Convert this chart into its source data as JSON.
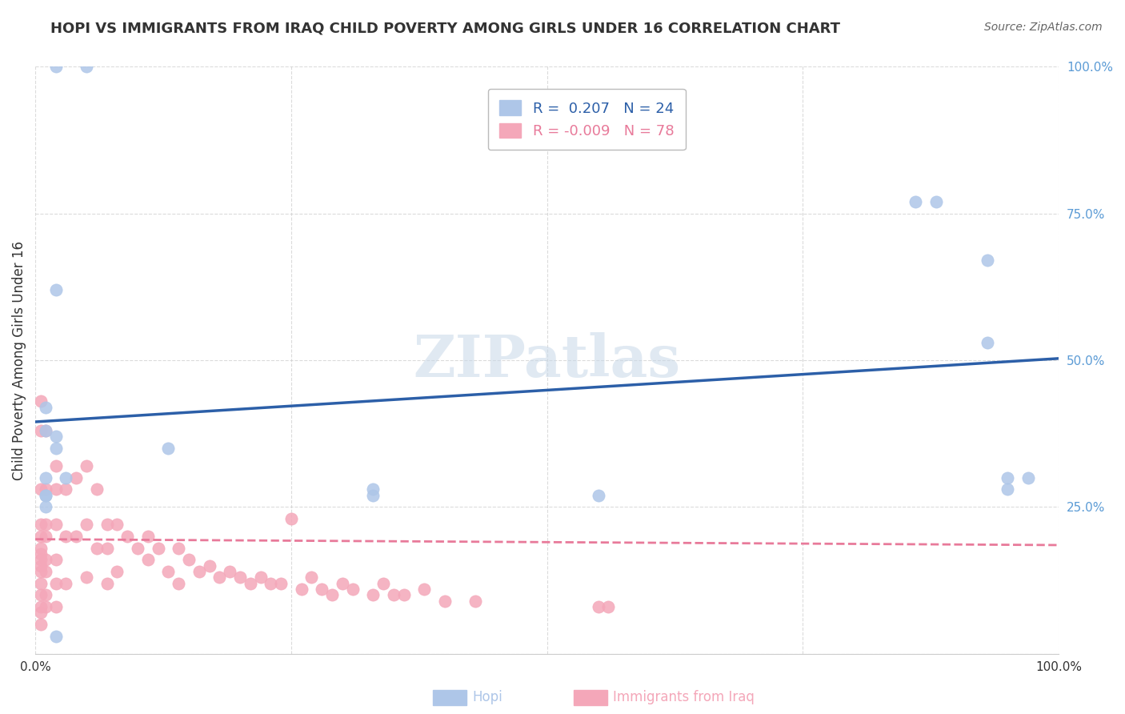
{
  "title": "HOPI VS IMMIGRANTS FROM IRAQ CHILD POVERTY AMONG GIRLS UNDER 16 CORRELATION CHART",
  "source": "Source: ZipAtlas.com",
  "ylabel": "Child Poverty Among Girls Under 16",
  "watermark": "ZIPatlas",
  "legend_hopi": "R =  0.207   N = 24",
  "legend_iraq": "R = -0.009   N = 78",
  "footer_label_hopi": "Hopi",
  "footer_label_iraq": "Immigrants from Iraq",
  "hopi_color": "#aec6e8",
  "iraq_color": "#f4a7b9",
  "trend_hopi_color": "#2c5fa8",
  "trend_iraq_color": "#e87a9a",
  "xlim": [
    0,
    1.0
  ],
  "ylim": [
    0,
    1.0
  ],
  "xticks": [
    0,
    0.25,
    0.5,
    0.75,
    1.0
  ],
  "yticks": [
    0,
    0.25,
    0.5,
    0.75,
    1.0
  ],
  "xticklabels": [
    "0.0%",
    "",
    "",
    "",
    "100.0%"
  ],
  "yticklabels": [
    "",
    "25.0%",
    "50.0%",
    "75.0%",
    "100.0%"
  ],
  "hopi_x": [
    0.02,
    0.05,
    0.02,
    0.01,
    0.01,
    0.02,
    0.02,
    0.01,
    0.03,
    0.01,
    0.01,
    0.01,
    0.13,
    0.33,
    0.33,
    0.55,
    0.86,
    0.88,
    0.93,
    0.93,
    0.95,
    0.95,
    0.97,
    0.02
  ],
  "hopi_y": [
    1.0,
    1.0,
    0.62,
    0.42,
    0.38,
    0.37,
    0.35,
    0.3,
    0.3,
    0.27,
    0.27,
    0.25,
    0.35,
    0.28,
    0.27,
    0.27,
    0.77,
    0.77,
    0.67,
    0.53,
    0.3,
    0.28,
    0.3,
    0.03
  ],
  "iraq_x": [
    0.005,
    0.005,
    0.005,
    0.005,
    0.005,
    0.005,
    0.005,
    0.005,
    0.005,
    0.005,
    0.005,
    0.005,
    0.005,
    0.005,
    0.005,
    0.01,
    0.01,
    0.01,
    0.01,
    0.01,
    0.01,
    0.01,
    0.01,
    0.02,
    0.02,
    0.02,
    0.02,
    0.02,
    0.02,
    0.03,
    0.03,
    0.03,
    0.04,
    0.04,
    0.05,
    0.05,
    0.05,
    0.06,
    0.06,
    0.07,
    0.07,
    0.07,
    0.08,
    0.08,
    0.09,
    0.1,
    0.11,
    0.11,
    0.12,
    0.13,
    0.14,
    0.14,
    0.15,
    0.16,
    0.17,
    0.18,
    0.19,
    0.2,
    0.21,
    0.22,
    0.23,
    0.24,
    0.25,
    0.26,
    0.27,
    0.28,
    0.29,
    0.3,
    0.31,
    0.33,
    0.34,
    0.35,
    0.36,
    0.38,
    0.4,
    0.43,
    0.55,
    0.56
  ],
  "iraq_y": [
    0.43,
    0.38,
    0.28,
    0.22,
    0.2,
    0.18,
    0.17,
    0.16,
    0.15,
    0.14,
    0.12,
    0.1,
    0.08,
    0.07,
    0.05,
    0.38,
    0.28,
    0.22,
    0.2,
    0.16,
    0.14,
    0.1,
    0.08,
    0.32,
    0.28,
    0.22,
    0.16,
    0.12,
    0.08,
    0.28,
    0.2,
    0.12,
    0.3,
    0.2,
    0.32,
    0.22,
    0.13,
    0.28,
    0.18,
    0.22,
    0.18,
    0.12,
    0.22,
    0.14,
    0.2,
    0.18,
    0.2,
    0.16,
    0.18,
    0.14,
    0.18,
    0.12,
    0.16,
    0.14,
    0.15,
    0.13,
    0.14,
    0.13,
    0.12,
    0.13,
    0.12,
    0.12,
    0.23,
    0.11,
    0.13,
    0.11,
    0.1,
    0.12,
    0.11,
    0.1,
    0.12,
    0.1,
    0.1,
    0.11,
    0.09,
    0.09,
    0.08,
    0.08
  ],
  "hopi_trend_x": [
    0.0,
    1.0
  ],
  "hopi_trend_y": [
    0.395,
    0.503
  ],
  "iraq_trend_x": [
    0.0,
    1.0
  ],
  "iraq_trend_y": [
    0.195,
    0.185
  ],
  "background_color": "#ffffff",
  "grid_color": "#cccccc",
  "title_color": "#333333",
  "axis_tick_color_right": "#5b9bd5",
  "marker_size": 120
}
